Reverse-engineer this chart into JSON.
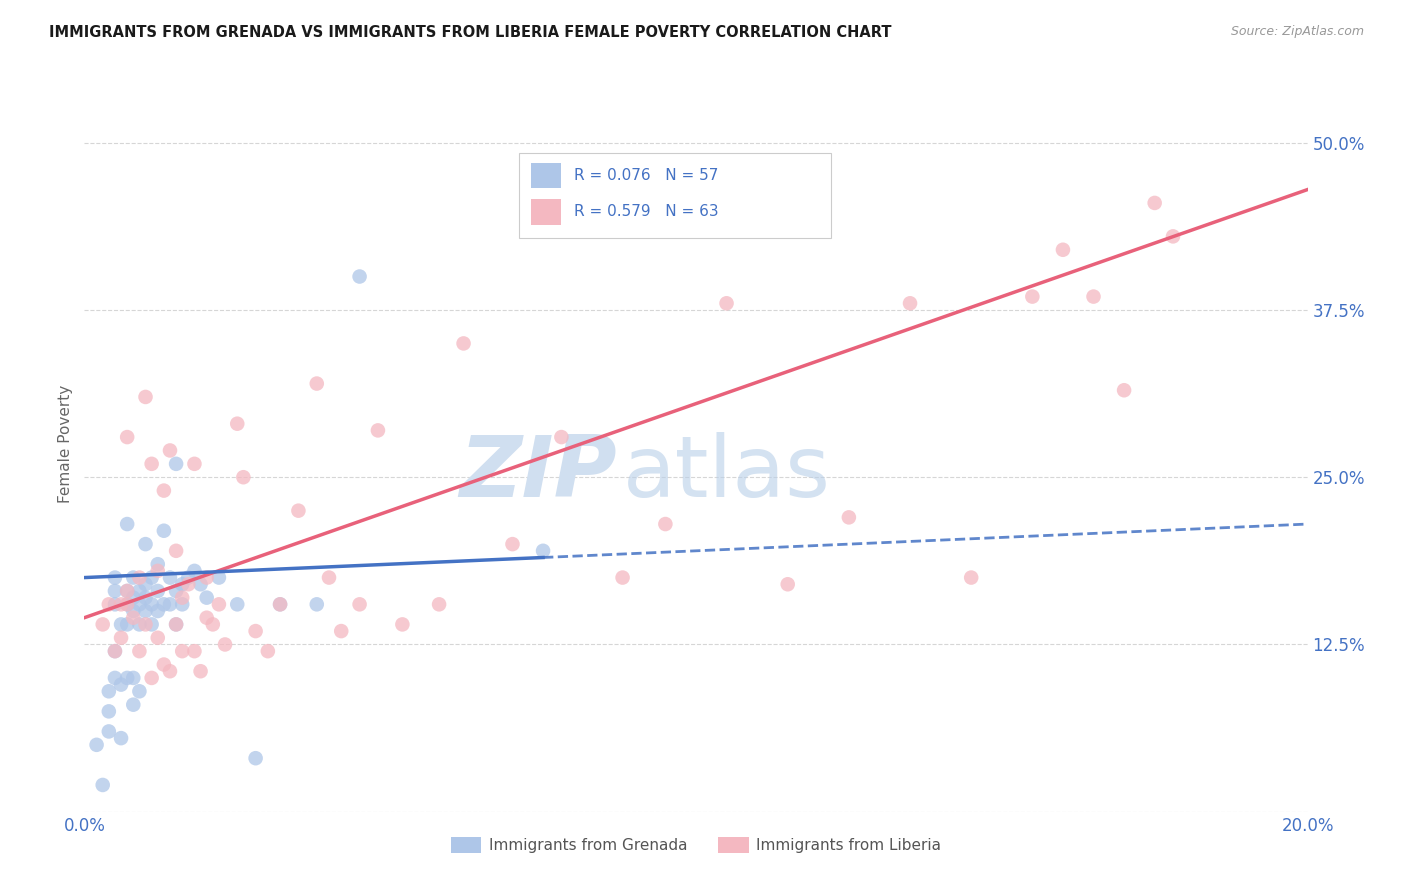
{
  "title": "IMMIGRANTS FROM GRENADA VS IMMIGRANTS FROM LIBERIA FEMALE POVERTY CORRELATION CHART",
  "source": "Source: ZipAtlas.com",
  "ylabel": "Female Poverty",
  "legend_grenada_label": "Immigrants from Grenada",
  "legend_liberia_label": "Immigrants from Liberia",
  "grenada_R_val": "0.076",
  "grenada_N_val": "57",
  "liberia_R_val": "0.579",
  "liberia_N_val": "63",
  "xmin": 0.0,
  "xmax": 0.2,
  "ymin": 0.0,
  "ymax": 0.55,
  "xticks": [
    0.0,
    0.05,
    0.1,
    0.15,
    0.2
  ],
  "xtick_labels": [
    "0.0%",
    "",
    "",
    "",
    "20.0%"
  ],
  "yticks": [
    0.0,
    0.125,
    0.25,
    0.375,
    0.5
  ],
  "ytick_labels": [
    "",
    "12.5%",
    "25.0%",
    "37.5%",
    "50.0%"
  ],
  "background_color": "#ffffff",
  "grenada_color": "#aec6e8",
  "liberia_color": "#f4b8c1",
  "grenada_line_color": "#4472c4",
  "liberia_line_color": "#e8617a",
  "watermark_zip": "ZIP",
  "watermark_atlas": "atlas",
  "watermark_color": "#d0dff0",
  "grenada_x": [
    0.002,
    0.003,
    0.004,
    0.004,
    0.004,
    0.005,
    0.005,
    0.005,
    0.005,
    0.005,
    0.006,
    0.006,
    0.006,
    0.007,
    0.007,
    0.007,
    0.007,
    0.007,
    0.008,
    0.008,
    0.008,
    0.008,
    0.008,
    0.009,
    0.009,
    0.009,
    0.009,
    0.01,
    0.01,
    0.01,
    0.01,
    0.011,
    0.011,
    0.011,
    0.012,
    0.012,
    0.012,
    0.013,
    0.013,
    0.014,
    0.014,
    0.015,
    0.015,
    0.015,
    0.016,
    0.016,
    0.017,
    0.018,
    0.019,
    0.02,
    0.022,
    0.025,
    0.028,
    0.032,
    0.038,
    0.045,
    0.075
  ],
  "grenada_y": [
    0.05,
    0.02,
    0.06,
    0.075,
    0.09,
    0.1,
    0.12,
    0.155,
    0.165,
    0.175,
    0.055,
    0.095,
    0.14,
    0.1,
    0.14,
    0.155,
    0.165,
    0.215,
    0.08,
    0.1,
    0.15,
    0.16,
    0.175,
    0.09,
    0.14,
    0.155,
    0.165,
    0.15,
    0.16,
    0.17,
    0.2,
    0.14,
    0.155,
    0.175,
    0.15,
    0.165,
    0.185,
    0.155,
    0.21,
    0.155,
    0.175,
    0.14,
    0.165,
    0.26,
    0.155,
    0.17,
    0.175,
    0.18,
    0.17,
    0.16,
    0.175,
    0.155,
    0.04,
    0.155,
    0.155,
    0.4,
    0.195
  ],
  "liberia_x": [
    0.003,
    0.004,
    0.005,
    0.006,
    0.006,
    0.007,
    0.007,
    0.007,
    0.008,
    0.009,
    0.009,
    0.01,
    0.01,
    0.011,
    0.011,
    0.012,
    0.012,
    0.013,
    0.013,
    0.014,
    0.014,
    0.015,
    0.015,
    0.016,
    0.016,
    0.017,
    0.018,
    0.018,
    0.019,
    0.02,
    0.02,
    0.021,
    0.022,
    0.023,
    0.025,
    0.026,
    0.028,
    0.03,
    0.032,
    0.035,
    0.038,
    0.04,
    0.042,
    0.045,
    0.048,
    0.052,
    0.058,
    0.062,
    0.07,
    0.078,
    0.088,
    0.095,
    0.105,
    0.115,
    0.125,
    0.135,
    0.145,
    0.155,
    0.16,
    0.165,
    0.17,
    0.175,
    0.178
  ],
  "liberia_y": [
    0.14,
    0.155,
    0.12,
    0.13,
    0.155,
    0.155,
    0.165,
    0.28,
    0.145,
    0.12,
    0.175,
    0.14,
    0.31,
    0.1,
    0.26,
    0.13,
    0.18,
    0.11,
    0.24,
    0.105,
    0.27,
    0.14,
    0.195,
    0.12,
    0.16,
    0.17,
    0.12,
    0.26,
    0.105,
    0.145,
    0.175,
    0.14,
    0.155,
    0.125,
    0.29,
    0.25,
    0.135,
    0.12,
    0.155,
    0.225,
    0.32,
    0.175,
    0.135,
    0.155,
    0.285,
    0.14,
    0.155,
    0.35,
    0.2,
    0.28,
    0.175,
    0.215,
    0.38,
    0.17,
    0.22,
    0.38,
    0.175,
    0.385,
    0.42,
    0.385,
    0.315,
    0.455,
    0.43
  ],
  "grenada_line_x0": 0.0,
  "grenada_line_y0": 0.175,
  "grenada_line_x1": 0.2,
  "grenada_line_y1": 0.215,
  "liberia_line_x0": 0.0,
  "liberia_line_y0": 0.145,
  "liberia_line_x1": 0.2,
  "liberia_line_y1": 0.465
}
